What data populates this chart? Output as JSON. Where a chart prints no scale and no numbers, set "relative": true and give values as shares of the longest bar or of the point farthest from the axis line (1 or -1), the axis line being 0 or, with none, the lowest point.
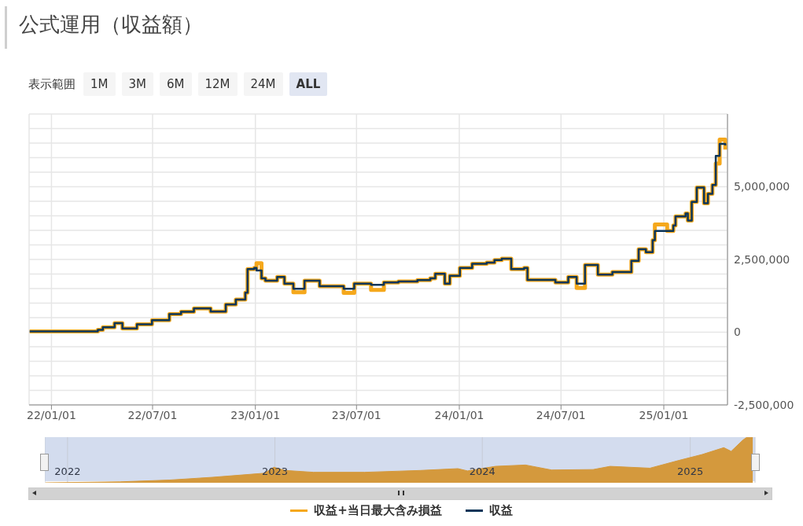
{
  "chart_data": [
    {
      "type": "step",
      "title": "公式運用（収益額）",
      "annotations": [
        "表示範囲",
        "1M",
        "3M",
        "6M",
        "12M",
        "24M",
        "ALL"
      ],
      "x": [
        "2021-11-23",
        "2022-03-25",
        "2022-04-03",
        "2022-04-24",
        "2022-05-08",
        "2022-06-03",
        "2022-06-30",
        "2022-07-31",
        "2022-08-21",
        "2022-09-13",
        "2022-10-13",
        "2022-11-09",
        "2022-11-27",
        "2022-12-14",
        "2022-12-18",
        "2022-12-30",
        "2023-01-03",
        "2023-01-12",
        "2023-01-19",
        "2023-02-09",
        "2023-02-22",
        "2023-03-10",
        "2023-03-30",
        "2023-04-26",
        "2023-06-08",
        "2023-06-27",
        "2023-07-27",
        "2023-08-19",
        "2023-09-14",
        "2023-10-18",
        "2023-11-10",
        "2023-11-19",
        "2023-12-06",
        "2023-12-15",
        "2024-01-02",
        "2024-01-24",
        "2024-02-19",
        "2024-03-04",
        "2024-03-17",
        "2024-04-03",
        "2024-04-26",
        "2024-05-02",
        "2024-06-21",
        "2024-07-14",
        "2024-07-29",
        "2024-08-13",
        "2024-09-05",
        "2024-10-01",
        "2024-10-22",
        "2024-11-04",
        "2024-11-17",
        "2024-11-30",
        "2024-12-12",
        "2024-12-16",
        "2025-01-07",
        "2025-01-18",
        "2025-01-22",
        "2025-02-09",
        "2025-02-13",
        "2025-02-20",
        "2025-03-01",
        "2025-03-14",
        "2025-03-21",
        "2025-03-29",
        "2025-04-04",
        "2025-04-11",
        "2025-04-21"
      ],
      "series": [
        {
          "name": "収益+当日最大含み損益",
          "color": "#f5a81c",
          "values": [
            30000,
            80000,
            170000,
            310000,
            130000,
            270000,
            410000,
            620000,
            700000,
            820000,
            710000,
            950000,
            1120000,
            1360000,
            2170000,
            2210000,
            2370000,
            1850000,
            1770000,
            1900000,
            1670000,
            1370000,
            1770000,
            1580000,
            1350000,
            1670000,
            1450000,
            1710000,
            1740000,
            1790000,
            1850000,
            2010000,
            1670000,
            1940000,
            2210000,
            2350000,
            2390000,
            2480000,
            2530000,
            2170000,
            2210000,
            1800000,
            1710000,
            1900000,
            1520000,
            2310000,
            1980000,
            2070000,
            2070000,
            2450000,
            2850000,
            2750000,
            3160000,
            3700000,
            3480000,
            3670000,
            3980000,
            4080000,
            3840000,
            4480000,
            4970000,
            4430000,
            4760000,
            5060000,
            5800000,
            6620000,
            6280000
          ]
        },
        {
          "name": "収益",
          "color": "#0b3558",
          "values": [
            30000,
            80000,
            170000,
            310000,
            130000,
            270000,
            410000,
            620000,
            700000,
            820000,
            710000,
            950000,
            1120000,
            1360000,
            2170000,
            2210000,
            2120000,
            1850000,
            1770000,
            1900000,
            1670000,
            1490000,
            1770000,
            1580000,
            1490000,
            1670000,
            1630000,
            1710000,
            1740000,
            1790000,
            1850000,
            2010000,
            1670000,
            1940000,
            2210000,
            2350000,
            2390000,
            2480000,
            2530000,
            2170000,
            2210000,
            1800000,
            1710000,
            1900000,
            1670000,
            2310000,
            1980000,
            2070000,
            2070000,
            2450000,
            2850000,
            2750000,
            3160000,
            3480000,
            3480000,
            3670000,
            3980000,
            4080000,
            3840000,
            4480000,
            4970000,
            4430000,
            4760000,
            5060000,
            6060000,
            6470000,
            6420000
          ]
        }
      ],
      "xlim": [
        "2021-11-22",
        "2025-04-25"
      ],
      "xticks": [
        {
          "value": "2022-01-01",
          "label": "22/01/01"
        },
        {
          "value": "2022-07-01",
          "label": "22/07/01"
        },
        {
          "value": "2023-01-01",
          "label": "23/01/01"
        },
        {
          "value": "2023-07-01",
          "label": "23/07/01"
        },
        {
          "value": "2024-01-01",
          "label": "24/01/01"
        },
        {
          "value": "2024-07-01",
          "label": "24/07/01"
        },
        {
          "value": "2025-01-01",
          "label": "25/01/01"
        }
      ],
      "ylim": [
        -2500000,
        7500000
      ],
      "yticks": [
        {
          "value": -2500000,
          "label": "-2,500,000"
        },
        {
          "value": -2000000,
          "label": null
        },
        {
          "value": -1500000,
          "label": null
        },
        {
          "value": -1000000,
          "label": null
        },
        {
          "value": -500000,
          "label": null
        },
        0,
        {
          "value": 500000,
          "label": null
        },
        {
          "value": 1000000,
          "label": null
        },
        {
          "value": 1500000,
          "label": null
        },
        {
          "value": 2000000,
          "label": null
        },
        {
          "value": 2500000,
          "label": "2,500,000"
        },
        {
          "value": 3000000,
          "label": null
        },
        {
          "value": 3500000,
          "label": null
        },
        {
          "value": 4000000,
          "label": null
        },
        {
          "value": 4500000,
          "label": null
        },
        {
          "value": 5000000,
          "label": "5,000,000"
        },
        {
          "value": 5500000,
          "label": null
        },
        {
          "value": 6000000,
          "label": null
        },
        {
          "value": 6500000,
          "label": null
        },
        {
          "value": 7000000,
          "label": null
        },
        {
          "value": 7500000,
          "label": null
        }
      ],
      "grid": true,
      "legend": "bottom",
      "line_style": "solid"
    },
    {
      "type": "area",
      "relative": true,
      "x": [
        "2021-11-23",
        "2022-04-03",
        "2022-06-30",
        "2022-09-13",
        "2022-12-14",
        "2022-12-30",
        "2023-01-19",
        "2023-03-10",
        "2023-06-08",
        "2023-09-14",
        "2023-11-19",
        "2023-12-06",
        "2024-01-24",
        "2024-03-17",
        "2024-05-02",
        "2024-07-14",
        "2024-08-13",
        "2024-10-22",
        "2024-12-12",
        "2025-01-22",
        "2025-03-01",
        "2025-03-14",
        "2025-04-04",
        "2025-04-11",
        "2025-04-21"
      ],
      "series": [
        {
          "color": "#d4993d",
          "values": [
            0,
            0.02,
            0.06,
            0.12,
            0.21,
            0.34,
            0.27,
            0.23,
            0.23,
            0.27,
            0.31,
            0.26,
            0.36,
            0.39,
            0.28,
            0.29,
            0.36,
            0.32,
            0.49,
            0.62,
            0.77,
            0.69,
            0.94,
            1,
            0.99
          ]
        }
      ],
      "xlim": [
        "2021-11-22",
        "2025-04-25"
      ],
      "xticks": [
        {
          "value": "2022-01-01",
          "label": "2022"
        },
        {
          "value": "2023-01-01",
          "label": "2023"
        },
        {
          "value": "2024-01-01",
          "label": "2024"
        },
        {
          "value": "2025-01-01",
          "label": "2025"
        }
      ],
      "grid": "x"
    }
  ]
}
